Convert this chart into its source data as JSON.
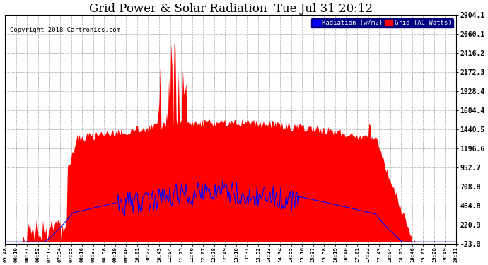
{
  "title": "Grid Power & Solar Radiation  Tue Jul 31 20:12",
  "copyright": "Copyright 2018 Cartronics.com",
  "legend_radiation": "Radiation (w/m2)",
  "legend_grid": "Grid (AC Watts)",
  "ylabel_right": [
    "2904.1",
    "2660.1",
    "2416.2",
    "2172.3",
    "1928.4",
    "1684.4",
    "1440.5",
    "1196.6",
    "952.7",
    "708.8",
    "464.8",
    "220.9",
    "-23.0"
  ],
  "ylim_min": -23.0,
  "ylim_max": 2904.1,
  "background_color": "#ffffff",
  "plot_bg_color": "#ffffff",
  "grid_color": "#aaaaaa",
  "title_fontsize": 12,
  "radiation_color": "#0000ff",
  "grid_ac_color": "#ff0000",
  "xtick_labels": [
    "05:48",
    "06:10",
    "06:31",
    "06:52",
    "07:13",
    "07:34",
    "07:55",
    "08:16",
    "08:37",
    "08:58",
    "09:19",
    "09:40",
    "10:01",
    "10:22",
    "10:43",
    "11:04",
    "11:25",
    "11:46",
    "12:07",
    "12:28",
    "12:49",
    "13:10",
    "13:31",
    "13:52",
    "14:13",
    "14:34",
    "14:55",
    "15:16",
    "15:37",
    "15:58",
    "16:19",
    "16:40",
    "17:01",
    "17:22",
    "17:43",
    "18:04",
    "18:25",
    "18:46",
    "19:07",
    "19:28",
    "19:49",
    "20:11"
  ]
}
